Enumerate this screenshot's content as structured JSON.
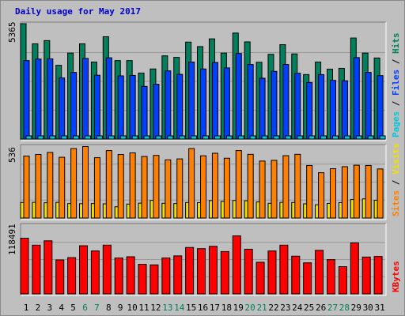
{
  "title": "Daily usage for May 2017",
  "colors": {
    "hits": "#00805c",
    "files": "#0040ff",
    "pages": "#00c8d8",
    "visits": "#f0e000",
    "sites": "#ff8000",
    "kbytes": "#ff0000",
    "weekend_day": "#00805c",
    "weekday_day": "#000000",
    "legend_sep": "#000000"
  },
  "chart_data": [
    {
      "type": "bar",
      "title": "Daily usage for May 2017",
      "ylabel_max": "5365",
      "ylim": [
        0,
        5365
      ],
      "grid": true,
      "legend": [
        {
          "name": "Pages",
          "color": "#00c8d8"
        },
        {
          "name": "Files",
          "color": "#0040ff"
        },
        {
          "name": "Hits",
          "color": "#00805c"
        }
      ],
      "categories": [
        "1",
        "2",
        "3",
        "4",
        "5",
        "6",
        "7",
        "8",
        "9",
        "10",
        "11",
        "12",
        "13",
        "14",
        "15",
        "16",
        "17",
        "18",
        "19",
        "20",
        "21",
        "22",
        "23",
        "24",
        "25",
        "26",
        "27",
        "28",
        "29",
        "30",
        "31"
      ],
      "series": [
        {
          "name": "Hits",
          "values": [
            5365,
            4430,
            4580,
            3430,
            4000,
            4430,
            3580,
            4760,
            3650,
            3650,
            3070,
            3260,
            3870,
            3800,
            4510,
            4300,
            4660,
            4000,
            4930,
            4520,
            3570,
            3940,
            4390,
            3960,
            3000,
            3580,
            3250,
            3290,
            4700,
            4000,
            3770
          ]
        },
        {
          "name": "Files",
          "values": [
            3650,
            3720,
            3730,
            2840,
            3100,
            3750,
            2970,
            3780,
            2940,
            2960,
            2450,
            2550,
            3170,
            3010,
            3580,
            3260,
            3560,
            3310,
            3980,
            3470,
            2830,
            3150,
            3470,
            3060,
            2630,
            3000,
            2730,
            2710,
            3790,
            3100,
            2950
          ]
        },
        {
          "name": "Pages",
          "values": [
            120,
            120,
            120,
            120,
            120,
            120,
            120,
            120,
            120,
            120,
            120,
            120,
            120,
            120,
            120,
            120,
            120,
            120,
            120,
            120,
            120,
            120,
            120,
            120,
            120,
            120,
            120,
            120,
            120,
            120,
            120
          ]
        }
      ]
    },
    {
      "type": "bar",
      "ylabel_max": "536",
      "ylim": [
        0,
        536
      ],
      "grid": true,
      "legend": [
        {
          "name": "Sites",
          "color": "#ff8000"
        },
        {
          "name": "Visits",
          "color": "#f0e000"
        }
      ],
      "categories": [
        "1",
        "2",
        "3",
        "4",
        "5",
        "6",
        "7",
        "8",
        "9",
        "10",
        "11",
        "12",
        "13",
        "14",
        "15",
        "16",
        "17",
        "18",
        "19",
        "20",
        "21",
        "22",
        "23",
        "24",
        "25",
        "26",
        "27",
        "28",
        "29",
        "30",
        "31"
      ],
      "series": [
        {
          "name": "Sites",
          "values": [
            462,
            474,
            489,
            453,
            518,
            533,
            450,
            503,
            474,
            486,
            459,
            467,
            434,
            441,
            518,
            464,
            483,
            446,
            503,
            475,
            425,
            430,
            465,
            475,
            392,
            338,
            368,
            383,
            394,
            392,
            366
          ]
        },
        {
          "name": "Visits",
          "values": [
            116,
            117,
            114,
            117,
            108,
            107,
            108,
            106,
            84,
            104,
            111,
            132,
            110,
            108,
            116,
            115,
            130,
            124,
            131,
            129,
            120,
            110,
            117,
            116,
            106,
            99,
            109,
            115,
            138,
            143,
            133
          ]
        }
      ]
    },
    {
      "type": "bar",
      "ylabel_max": "118491",
      "ylim": [
        0,
        118491
      ],
      "grid": true,
      "legend": [
        {
          "name": "KBytes",
          "color": "#ff0000"
        }
      ],
      "categories": [
        "1",
        "2",
        "3",
        "4",
        "5",
        "6",
        "7",
        "8",
        "9",
        "10",
        "11",
        "12",
        "13",
        "14",
        "15",
        "16",
        "17",
        "18",
        "19",
        "20",
        "21",
        "22",
        "23",
        "24",
        "25",
        "26",
        "27",
        "28",
        "29",
        "30",
        "31"
      ],
      "series": [
        {
          "name": "KBytes",
          "values": [
            96000,
            84000,
            91500,
            58500,
            62500,
            83000,
            74000,
            84000,
            62000,
            64000,
            51000,
            50000,
            62000,
            65500,
            80000,
            78000,
            82000,
            73000,
            100000,
            77000,
            54500,
            74000,
            84000,
            65000,
            53500,
            75000,
            59000,
            47000,
            88000,
            63500,
            64500
          ]
        }
      ]
    }
  ]
}
